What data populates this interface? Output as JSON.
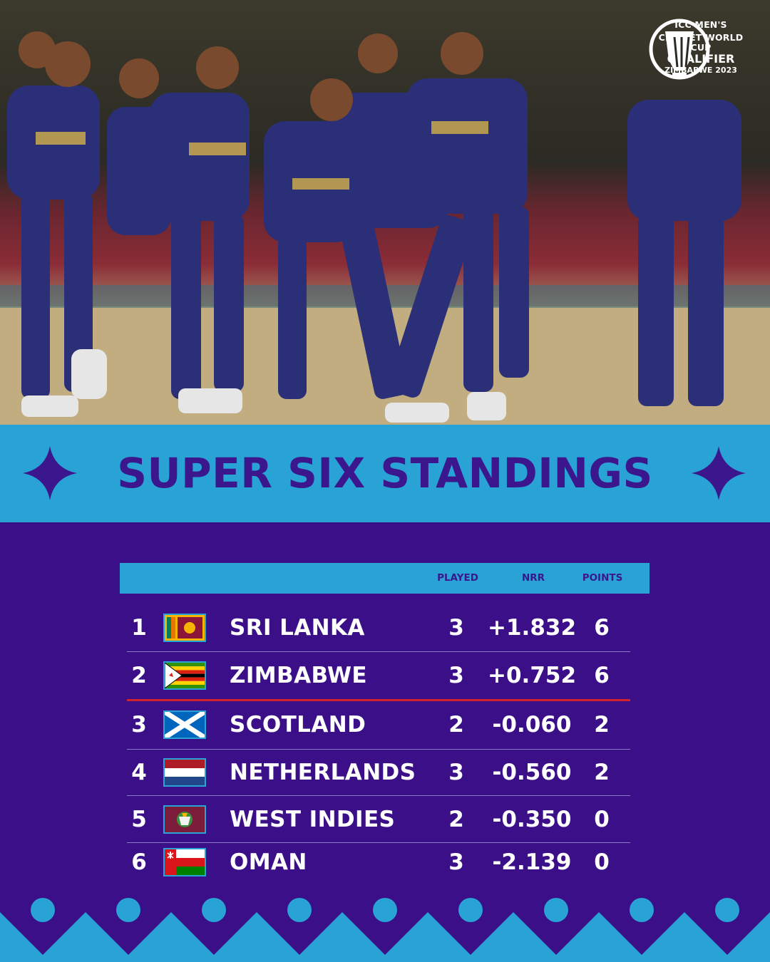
{
  "logo": {
    "line1": "ICC MEN'S",
    "line2": "CRICKET WORLD CUP",
    "line3": "QUALIFIER",
    "line4": "ZIMBABWE 2023"
  },
  "title": "SUPER SIX STANDINGS",
  "table": {
    "columns": [
      "PLAYED",
      "NRR",
      "POINTS"
    ],
    "rows": [
      {
        "pos": "1",
        "team": "SRI LANKA",
        "flag": "sri-lanka-flag",
        "played": "3",
        "nrr": "+1.832",
        "points": "6"
      },
      {
        "pos": "2",
        "team": "ZIMBABWE",
        "flag": "zimbabwe-flag",
        "played": "3",
        "nrr": "+0.752",
        "points": "6"
      },
      {
        "pos": "3",
        "team": "SCOTLAND",
        "flag": "scotland-flag",
        "played": "2",
        "nrr": "-0.060",
        "points": "2"
      },
      {
        "pos": "4",
        "team": "NETHERLANDS",
        "flag": "netherlands-flag",
        "played": "3",
        "nrr": "-0.560",
        "points": "2"
      },
      {
        "pos": "5",
        "team": "WEST INDIES",
        "flag": "west-indies-flag",
        "played": "2",
        "nrr": "-0.350",
        "points": "0"
      },
      {
        "pos": "6",
        "team": "OMAN",
        "flag": "oman-flag",
        "played": "3",
        "nrr": "-2.139",
        "points": "0"
      }
    ]
  },
  "colors": {
    "background_purple": "#3a0f88",
    "accent_blue": "#29a3d6",
    "title_purple": "#3b168c",
    "cutoff_red": "#d2232a"
  }
}
